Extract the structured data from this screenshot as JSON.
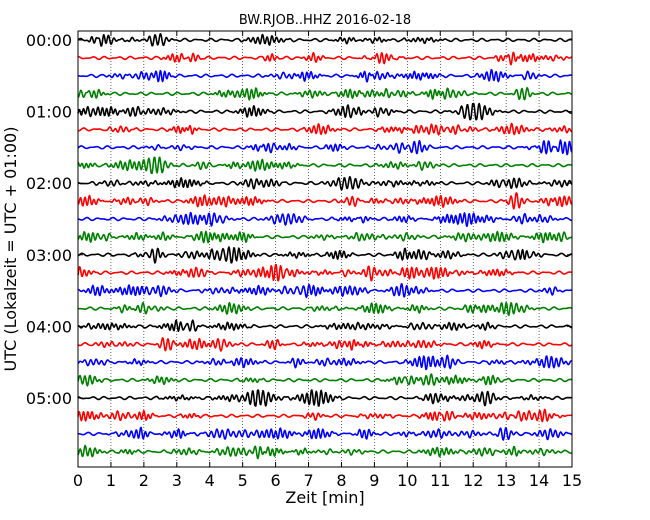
{
  "chart_data": {
    "type": "line",
    "title": "BW.RJOB..HHZ 2016-02-18",
    "xlabel": "Zeit  [min]",
    "ylabel": "UTC (Lokalzeit = UTC + 01:00)",
    "xlim": [
      0,
      15
    ],
    "x_ticks": [
      "0",
      "1",
      "2",
      "3",
      "4",
      "5",
      "6",
      "7",
      "8",
      "9",
      "10",
      "11",
      "12",
      "13",
      "14",
      "15"
    ],
    "y_ticks": [
      "00:00",
      "01:00",
      "02:00",
      "03:00",
      "04:00",
      "05:00"
    ],
    "trace_count": 24,
    "trace_interval_minutes": 15,
    "trace_colors": [
      "#000000",
      "#ff0000",
      "#0000ff",
      "#008000"
    ],
    "grid": "vertical dotted"
  }
}
